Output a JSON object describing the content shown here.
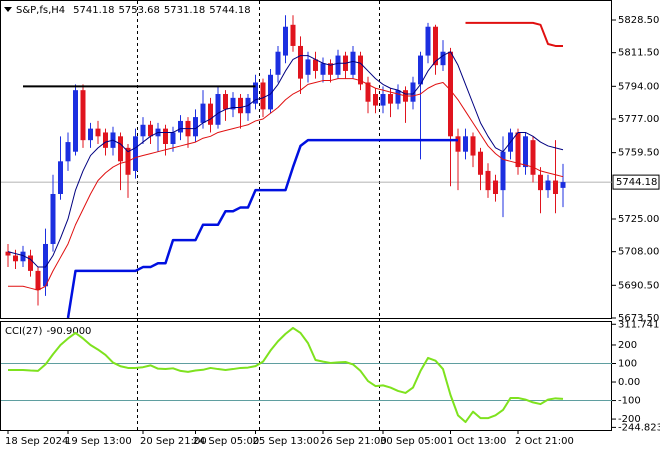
{
  "chart_data": [
    {
      "type": "candlestick",
      "title": "S&P,fs,H4",
      "categories": [
        "18 Sep 2024",
        null,
        null,
        null,
        null,
        null,
        null,
        null,
        "19 Sep 13:00",
        null,
        null,
        null,
        null,
        null,
        null,
        null,
        null,
        null,
        "20 Sep 21:00",
        null,
        null,
        null,
        null,
        null,
        null,
        "24 Sep 05:00",
        null,
        null,
        null,
        null,
        null,
        null,
        null,
        "25 Sep 13:00",
        null,
        null,
        null,
        null,
        null,
        null,
        null,
        null,
        "26 Sep 21:00",
        null,
        null,
        null,
        null,
        null,
        null,
        null,
        "30 Sep 05:00",
        null,
        null,
        null,
        null,
        null,
        null,
        null,
        null,
        "1 Oct 13:00",
        null,
        null,
        null,
        null,
        null,
        null,
        null,
        null,
        "2 Oct 21:00",
        null,
        null,
        null,
        null,
        null,
        null
      ],
      "open": [
        5708,
        5706,
        5703,
        5706,
        5698,
        5690,
        5712,
        5738,
        5755,
        5760,
        5792,
        5766,
        5772,
        5770,
        5762,
        5768,
        5762,
        5750,
        5768,
        5774,
        5768,
        5772,
        5764,
        5770,
        5776,
        5768,
        5775,
        5785,
        5774,
        5790,
        5782,
        5788,
        5780,
        5785,
        5796,
        5782,
        5800,
        5810,
        5826,
        5815,
        5800,
        5808,
        5800,
        5806,
        5800,
        5810,
        5800,
        5810,
        5796,
        5790,
        5784,
        5790,
        5785,
        5792,
        5786,
        5795,
        5810,
        5825,
        5805,
        5812,
        5768,
        5760,
        5768,
        5760,
        5750,
        5745,
        5740,
        5760,
        5770,
        5752,
        5766,
        5748,
        5740,
        5745,
        5741.18
      ],
      "high": [
        5712,
        5709,
        5711,
        5709,
        5700,
        5720,
        5748,
        5768,
        5770,
        5795,
        5795,
        5775,
        5776,
        5772,
        5773,
        5770,
        5764,
        5772,
        5778,
        5776,
        5775,
        5774,
        5773,
        5779,
        5778,
        5782,
        5792,
        5788,
        5794,
        5792,
        5791,
        5790,
        5790,
        5800,
        5798,
        5803,
        5815,
        5831,
        5831,
        5820,
        5812,
        5812,
        5809,
        5808,
        5813,
        5812,
        5815,
        5812,
        5799,
        5793,
        5794,
        5793,
        5795,
        5794,
        5799,
        5812,
        5827,
        5826,
        5818,
        5814,
        5772,
        5772,
        5770,
        5762,
        5754,
        5748,
        5768,
        5772,
        5772,
        5770,
        5768,
        5752,
        5748,
        5766,
        5753.68
      ],
      "low": [
        5700,
        5699,
        5700,
        5695,
        5680,
        5685,
        5708,
        5735,
        5750,
        5758,
        5762,
        5762,
        5764,
        5758,
        5758,
        5740,
        5736,
        5746,
        5764,
        5764,
        5760,
        5758,
        5760,
        5766,
        5762,
        5765,
        5772,
        5770,
        5772,
        5776,
        5778,
        5772,
        5776,
        5782,
        5778,
        5780,
        5796,
        5806,
        5812,
        5790,
        5796,
        5798,
        5796,
        5796,
        5798,
        5798,
        5798,
        5792,
        5780,
        5780,
        5780,
        5778,
        5782,
        5775,
        5782,
        5756,
        5806,
        5800,
        5802,
        5742,
        5740,
        5756,
        5752,
        5740,
        5736,
        5734,
        5726,
        5756,
        5748,
        5748,
        5744,
        5728,
        5736,
        5728,
        5731.18
      ],
      "close": [
        5706,
        5703,
        5708,
        5698,
        5688,
        5712,
        5738,
        5755,
        5765,
        5792,
        5766,
        5772,
        5768,
        5762,
        5770,
        5755,
        5748,
        5768,
        5774,
        5768,
        5772,
        5764,
        5770,
        5776,
        5768,
        5778,
        5785,
        5774,
        5790,
        5782,
        5788,
        5780,
        5788,
        5796,
        5782,
        5800,
        5812,
        5825,
        5815,
        5798,
        5808,
        5802,
        5806,
        5800,
        5810,
        5802,
        5812,
        5795,
        5786,
        5784,
        5790,
        5785,
        5792,
        5786,
        5796,
        5810,
        5825,
        5805,
        5812,
        5768,
        5760,
        5768,
        5758,
        5748,
        5740,
        5738,
        5760,
        5770,
        5752,
        5768,
        5748,
        5740,
        5745,
        5738,
        5744.18
      ],
      "up_color": "#1c2fe0",
      "down_color": "#e0141e",
      "overlays": [
        {
          "color": "#e01010",
          "width": 1,
          "values": [
            5690,
            5690,
            5690,
            5689,
            5688,
            5690,
            5698,
            5705,
            5712,
            5722,
            5730,
            5738,
            5745,
            5749,
            5752,
            5754,
            5755,
            5757,
            5758,
            5759,
            5760,
            5761,
            5762,
            5763,
            5764,
            5765,
            5767,
            5768,
            5770,
            5771,
            5772,
            5773,
            5774,
            5776,
            5777,
            5780,
            5783,
            5787,
            5790,
            5792,
            5795,
            5796,
            5797,
            5797,
            5798,
            5798,
            5798,
            5797,
            5795,
            5793,
            5792,
            5791,
            5790,
            5789,
            5789,
            5790,
            5793,
            5795,
            5796,
            5792,
            5787,
            5781,
            5775,
            5769,
            5763,
            5759,
            5756,
            5755,
            5754,
            5753,
            5752,
            5750,
            5749,
            5748,
            5747
          ]
        },
        {
          "color": "#000080",
          "width": 1,
          "values": [
            5708,
            5707,
            5706,
            5704,
            5700,
            5700,
            5706,
            5715,
            5725,
            5740,
            5750,
            5758,
            5762,
            5765,
            5766,
            5764,
            5760,
            5762,
            5765,
            5768,
            5770,
            5770,
            5770,
            5772,
            5772,
            5772,
            5775,
            5777,
            5780,
            5782,
            5783,
            5783,
            5784,
            5787,
            5788,
            5790,
            5795,
            5802,
            5808,
            5810,
            5810,
            5808,
            5806,
            5805,
            5806,
            5806,
            5807,
            5806,
            5802,
            5798,
            5795,
            5793,
            5792,
            5790,
            5790,
            5795,
            5802,
            5807,
            5810,
            5812,
            5805,
            5795,
            5785,
            5775,
            5768,
            5762,
            5760,
            5765,
            5770,
            5770,
            5768,
            5765,
            5763,
            5762,
            5761
          ]
        },
        {
          "color": "#000000",
          "width": 2,
          "values": [
            null,
            null,
            5794,
            5794,
            5794,
            5794,
            5794,
            5794,
            5794,
            5794,
            5794,
            5794,
            5794,
            5794,
            5794,
            5794,
            5794,
            5794,
            5794,
            5794,
            5794,
            5794,
            5794,
            5794,
            5794,
            5794,
            5794,
            5794,
            5794,
            5794,
            5794,
            5794,
            5794,
            5794,
            null,
            null,
            null,
            null,
            null,
            null,
            null,
            null,
            null,
            null,
            null,
            null,
            null,
            null,
            null,
            null,
            null,
            null,
            null,
            null,
            null,
            null,
            null,
            null,
            null,
            null,
            null,
            null,
            null,
            null,
            null,
            null,
            null,
            null,
            null,
            null,
            null,
            null,
            null,
            null,
            null
          ]
        },
        {
          "color": "#0010e0",
          "width": 2.5,
          "values": [
            null,
            null,
            null,
            null,
            null,
            null,
            null,
            null,
            5673.5,
            5698,
            5698,
            5698,
            5698,
            5698,
            5698,
            5698,
            5698,
            5698,
            5700,
            5700,
            5702,
            5702,
            5714,
            5714,
            5714,
            5714,
            5722,
            5722,
            5722,
            5729,
            5729,
            5731,
            5731,
            5740,
            5740,
            5740,
            5740,
            5740,
            5752,
            5763,
            5766,
            5766,
            5766,
            5766,
            5766,
            5766,
            5766,
            5766,
            5766,
            5766,
            5766,
            5766,
            5766,
            5766,
            5766,
            5766,
            5766,
            5766,
            5766,
            5766,
            5766,
            null,
            null,
            null,
            null,
            null,
            null,
            null,
            null,
            null,
            null,
            null,
            null,
            null,
            null
          ]
        },
        {
          "color": "#e01010",
          "width": 2,
          "values": [
            null,
            null,
            null,
            null,
            null,
            null,
            null,
            null,
            null,
            null,
            null,
            null,
            null,
            null,
            null,
            null,
            null,
            null,
            null,
            null,
            null,
            null,
            null,
            null,
            null,
            null,
            null,
            null,
            null,
            null,
            null,
            null,
            null,
            null,
            null,
            null,
            null,
            null,
            null,
            null,
            null,
            null,
            null,
            null,
            null,
            null,
            null,
            null,
            null,
            null,
            null,
            null,
            null,
            null,
            null,
            null,
            null,
            null,
            null,
            null,
            null,
            5827,
            5827,
            5827,
            5827,
            5827,
            5827,
            5827,
            5827,
            5827,
            5827,
            5826,
            5816,
            5815,
            5815
          ]
        }
      ],
      "ylim": [
        5673.5,
        5838.9
      ],
      "yticks": [
        {
          "value": 5828.5,
          "label": "5828.50"
        },
        {
          "value": 5811.5,
          "label": "5811.50"
        },
        {
          "value": 5794,
          "label": "5794.00"
        },
        {
          "value": 5777,
          "label": "5777.00"
        },
        {
          "value": 5759.5,
          "label": "5759.50"
        },
        {
          "value": 5725,
          "label": "5725.00"
        },
        {
          "value": 5708,
          "label": "5708.00"
        },
        {
          "value": 5690.5,
          "label": "5690.50"
        },
        {
          "value": 5673.5,
          "label": "5673.50"
        }
      ]
    },
    {
      "type": "line",
      "name": "CCI(27)",
      "color": "#7ee21e",
      "values": [
        65,
        65,
        65,
        62,
        60,
        95,
        150,
        200,
        235,
        265,
        235,
        200,
        175,
        146,
        105,
        85,
        76,
        76,
        80,
        90,
        72,
        70,
        74,
        60,
        55,
        62,
        66,
        76,
        70,
        65,
        70,
        76,
        78,
        86,
        110,
        170,
        220,
        260,
        292,
        265,
        210,
        119,
        110,
        103,
        106,
        108,
        95,
        60,
        5,
        -22,
        -18,
        -30,
        -48,
        -59,
        -30,
        60,
        130,
        115,
        70,
        -70,
        -180,
        -216,
        -160,
        -195,
        -195,
        -180,
        -151,
        -86,
        -86,
        -95,
        -110,
        -119,
        -95,
        -88,
        -90.9
      ],
      "current_value": {
        "value": -90.9,
        "label": "-90.9000"
      },
      "levels": [
        100,
        -100
      ],
      "level_color": "#5f9ea0",
      "ylim": [
        -259,
        324
      ],
      "yticks": [
        311.7415,
        200,
        100,
        {
          "value": 0,
          "label": "0.00"
        },
        -100,
        -200,
        -244.823
      ]
    }
  ]
}
